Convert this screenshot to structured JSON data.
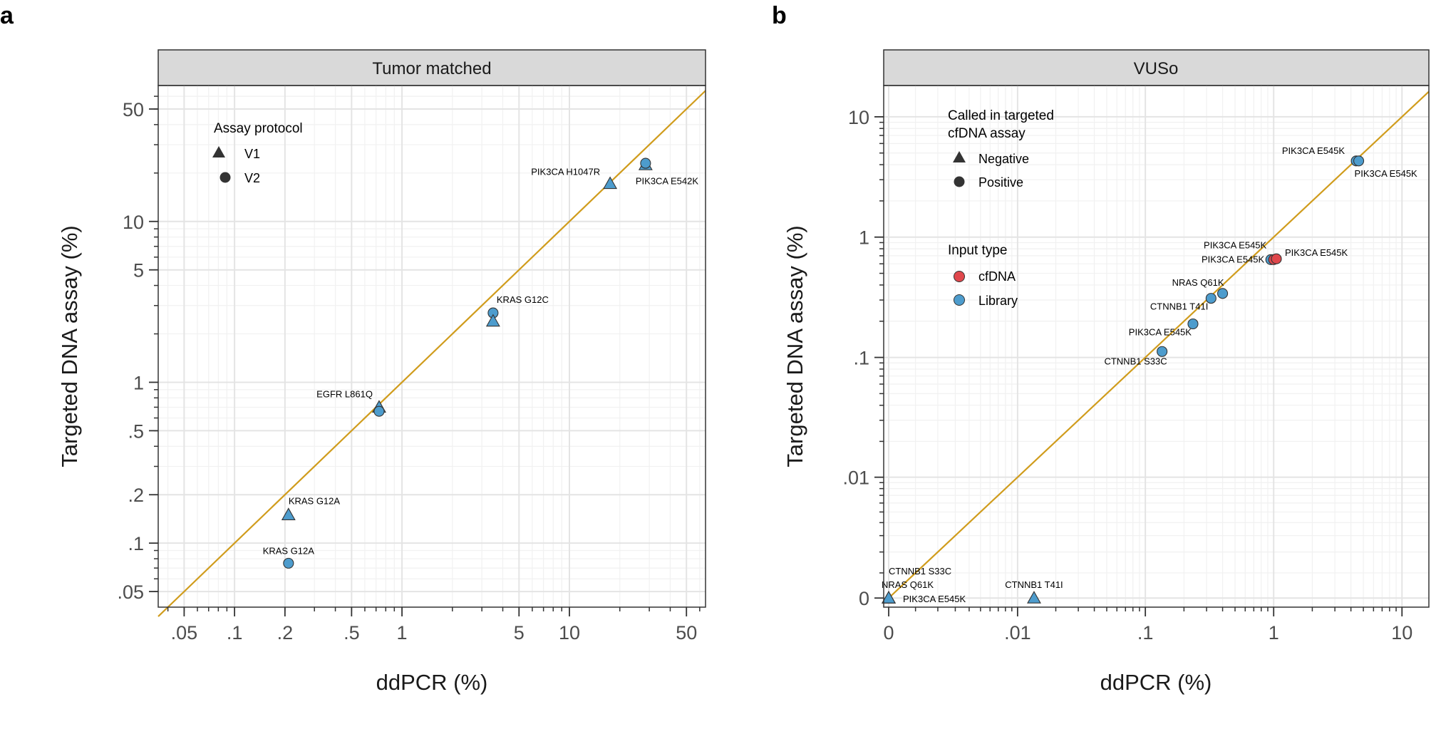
{
  "colors": {
    "cfDNA": "#e0474c",
    "Library": "#4d9ccd",
    "identity_line": "#d09c1c",
    "strip_bg": "#d9d9d9",
    "grid_major": "#e4e4e4",
    "grid_minor": "#f1f1f1"
  },
  "chart_data": [
    {
      "panel": "a",
      "type": "scatter",
      "strip_title": "Tumor matched",
      "xlabel": "ddPCR (%)",
      "ylabel": "Targeted DNA assay (%)",
      "x_scale": "log",
      "y_scale": "log",
      "xlim": [
        0.035,
        65
      ],
      "ylim": [
        0.04,
        70
      ],
      "x_ticks": [
        0.05,
        0.1,
        0.2,
        0.5,
        1,
        5,
        10,
        50
      ],
      "x_tick_labels": [
        ".05",
        ".1",
        ".2",
        ".5",
        "1",
        "5",
        "10",
        "50"
      ],
      "y_ticks": [
        0.05,
        0.1,
        0.2,
        0.5,
        1,
        5,
        10,
        50
      ],
      "y_tick_labels": [
        ".05",
        ".1",
        ".2",
        ".5",
        "1",
        "5",
        "10",
        "50"
      ],
      "grid": true,
      "identity_line": true,
      "legend": {
        "title": "Assay protocol",
        "placement": "top-left",
        "entries": [
          {
            "label": "V1",
            "shape": "triangle"
          },
          {
            "label": "V2",
            "shape": "circle"
          }
        ]
      },
      "points": [
        {
          "x": 0.21,
          "y": 0.15,
          "shape": "triangle",
          "input": "Library",
          "label": "KRAS G12A"
        },
        {
          "x": 0.21,
          "y": 0.075,
          "shape": "circle",
          "input": "Library",
          "label": "KRAS G12A"
        },
        {
          "x": 0.73,
          "y": 0.7,
          "shape": "triangle",
          "input": "Library",
          "label": "EGFR L861Q"
        },
        {
          "x": 0.73,
          "y": 0.66,
          "shape": "circle",
          "input": "Library",
          "label": ""
        },
        {
          "x": 3.5,
          "y": 2.7,
          "shape": "circle",
          "input": "Library",
          "label": "KRAS G12C"
        },
        {
          "x": 3.5,
          "y": 2.4,
          "shape": "triangle",
          "input": "Library",
          "label": ""
        },
        {
          "x": 17.5,
          "y": 17.2,
          "shape": "triangle",
          "input": "Library",
          "label": "PIK3CA H1047R"
        },
        {
          "x": 28.5,
          "y": 22.5,
          "shape": "triangle",
          "input": "Library",
          "label": "PIK3CA E542K"
        },
        {
          "x": 28.5,
          "y": 23.0,
          "shape": "circle",
          "input": "Library",
          "label": ""
        }
      ]
    },
    {
      "panel": "b",
      "type": "scatter",
      "strip_title": "VUSo",
      "xlabel": "ddPCR (%)",
      "ylabel": "Targeted DNA assay (%)",
      "x_scale": "pseudo-log",
      "y_scale": "pseudo-log",
      "x_ticks": [
        0,
        0.01,
        0.1,
        1,
        10
      ],
      "x_tick_labels": [
        "0",
        ".01",
        ".1",
        "1",
        "10"
      ],
      "y_ticks": [
        0,
        0.01,
        0.1,
        1,
        10
      ],
      "y_tick_labels": [
        "0",
        ".01",
        ".1",
        "1",
        "10"
      ],
      "grid": true,
      "identity_line": true,
      "legend": {
        "placement": "top-left",
        "shape_title_1": "Called in targeted",
        "shape_title_2": "cfDNA assay",
        "shape_entries": [
          {
            "label": "Negative",
            "shape": "triangle"
          },
          {
            "label": "Positive",
            "shape": "circle"
          }
        ],
        "color_title": "Input type",
        "color_entries": [
          {
            "label": "cfDNA",
            "color": "#e0474c"
          },
          {
            "label": "Library",
            "color": "#4d9ccd"
          }
        ]
      },
      "points": [
        {
          "x": 0,
          "y": 0,
          "shape": "triangle",
          "input": "Library",
          "label": "CTNNB1 S33C"
        },
        {
          "x": 0,
          "y": 0,
          "shape": "triangle",
          "input": "Library",
          "label": "NRAS Q61K"
        },
        {
          "x": 0,
          "y": 0,
          "shape": "triangle",
          "input": "Library",
          "label": "PIK3CA E545K"
        },
        {
          "x": 0.0135,
          "y": 0,
          "shape": "triangle",
          "input": "Library",
          "label": "CTNNB1 T41I"
        },
        {
          "x": 0.135,
          "y": 0.112,
          "shape": "circle",
          "input": "Library",
          "label": "CTNNB1 S33C"
        },
        {
          "x": 0.235,
          "y": 0.19,
          "shape": "circle",
          "input": "Library",
          "label": "PIK3CA E545K"
        },
        {
          "x": 0.325,
          "y": 0.31,
          "shape": "circle",
          "input": "Library",
          "label": "CTNNB1 T41I"
        },
        {
          "x": 0.4,
          "y": 0.34,
          "shape": "circle",
          "input": "Library",
          "label": "NRAS Q61K"
        },
        {
          "x": 0.95,
          "y": 0.65,
          "shape": "circle",
          "input": "Library",
          "label": "PIK3CA E545K"
        },
        {
          "x": 1.0,
          "y": 0.65,
          "shape": "circle",
          "input": "cfDNA",
          "label": "PIK3CA E545K"
        },
        {
          "x": 1.05,
          "y": 0.66,
          "shape": "circle",
          "input": "cfDNA",
          "label": "PIK3CA E545K"
        },
        {
          "x": 4.4,
          "y": 4.3,
          "shape": "circle",
          "input": "Library",
          "label": "PIK3CA E545K"
        },
        {
          "x": 4.6,
          "y": 4.3,
          "shape": "circle",
          "input": "Library",
          "label": "PIK3CA E545K"
        }
      ]
    }
  ]
}
